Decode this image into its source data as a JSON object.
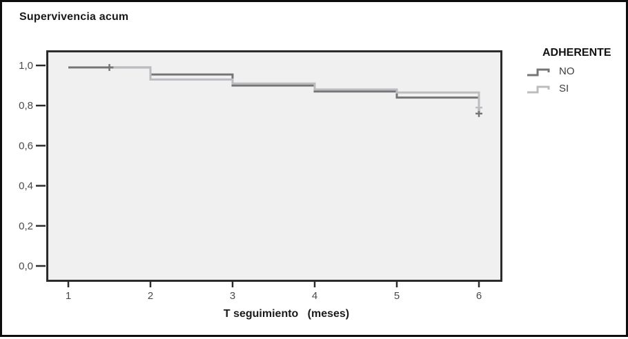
{
  "figure": {
    "title": "Supervivencia acum"
  },
  "legend": {
    "title": "ADHERENTE",
    "entries": [
      {
        "label": "NO",
        "color": "#757575"
      },
      {
        "label": "SI",
        "color": "#bcbcc0"
      }
    ]
  },
  "chart_data": {
    "type": "line",
    "subtype": "kaplan-meier-step",
    "title": "Supervivencia acum",
    "xlabel": "T seguimiento   (meses)",
    "ylabel": "",
    "xticks": [
      1,
      2,
      3,
      4,
      5,
      6
    ],
    "yticks": [
      0.0,
      0.2,
      0.4,
      0.6,
      0.8,
      1.0
    ],
    "ytick_labels": [
      "0,0",
      "0,2",
      "0,4",
      "0,6",
      "0,8",
      "1,0"
    ],
    "xlim": [
      0.73,
      6.28
    ],
    "ylim": [
      -0.08,
      1.08
    ],
    "grid": false,
    "legend_position": "right",
    "plot_bg": "#f0f0f1",
    "axis_color": "#2b2b2b",
    "series": [
      {
        "name": "NO",
        "color": "#757575",
        "steps": [
          [
            1,
            0.99
          ],
          [
            2,
            0.99
          ],
          [
            2,
            0.955
          ],
          [
            3,
            0.955
          ],
          [
            3,
            0.9
          ],
          [
            4,
            0.9
          ],
          [
            4,
            0.87
          ],
          [
            5,
            0.87
          ],
          [
            5,
            0.84
          ],
          [
            6,
            0.84
          ],
          [
            6,
            0.76
          ]
        ],
        "censored": [
          [
            1.5,
            0.99
          ],
          [
            6,
            0.76
          ]
        ]
      },
      {
        "name": "SI",
        "color": "#bcbcc0",
        "steps": [
          [
            1.55,
            0.99
          ],
          [
            2,
            0.99
          ],
          [
            2,
            0.93
          ],
          [
            3,
            0.93
          ],
          [
            3,
            0.91
          ],
          [
            4,
            0.91
          ],
          [
            4,
            0.88
          ],
          [
            5,
            0.88
          ],
          [
            5,
            0.865
          ],
          [
            6,
            0.865
          ],
          [
            6,
            0.79
          ]
        ],
        "censored": [
          [
            6,
            0.79
          ]
        ]
      }
    ]
  }
}
